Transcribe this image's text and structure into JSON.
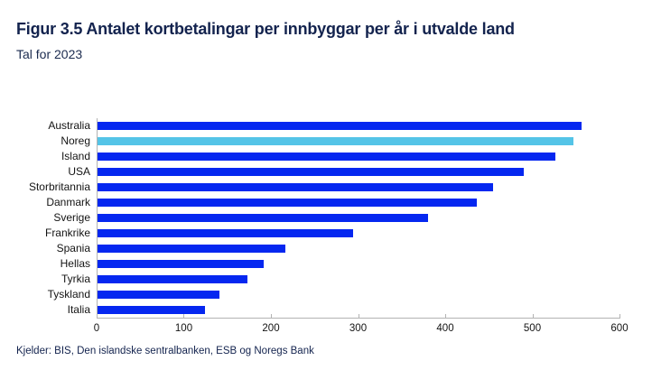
{
  "header": {
    "title": "Figur 3.5 Antalet kortbetalingar per innbyggar per år i utvalde land",
    "subtitle": "Tal for 2023"
  },
  "footer": {
    "source": "Kjelder: BIS, Den islandske sentralbanken, ESB og Noregs Bank"
  },
  "colors": {
    "bar": "#0527F0",
    "highlight_bar": "#54C4E7",
    "axis_line": "#B3B3B3",
    "title_text": "#13234E",
    "label_text": "#141414"
  },
  "chart_data": {
    "type": "bar",
    "orientation": "horizontal",
    "title": "Figur 3.5 Antalet kortbetalingar per innbyggar per år i utvalde land",
    "subtitle": "Tal for 2023",
    "source": "Kjelder: BIS, Den islandske sentralbanken, ESB og Noregs Bank",
    "categories": [
      "Australia",
      "Noreg",
      "Island",
      "USA",
      "Storbritannia",
      "Danmark",
      "Sverige",
      "Frankrike",
      "Spania",
      "Hellas",
      "Tyrkia",
      "Tyskland",
      "Italia"
    ],
    "values": [
      555,
      546,
      525,
      489,
      454,
      435,
      379,
      293,
      216,
      191,
      172,
      140,
      123
    ],
    "highlight_category": "Noreg",
    "xlabel": "",
    "ylabel": "",
    "xlim": [
      0,
      600
    ],
    "xticks": [
      0,
      100,
      200,
      300,
      400,
      500,
      600
    ],
    "grid": false,
    "legend": false
  }
}
